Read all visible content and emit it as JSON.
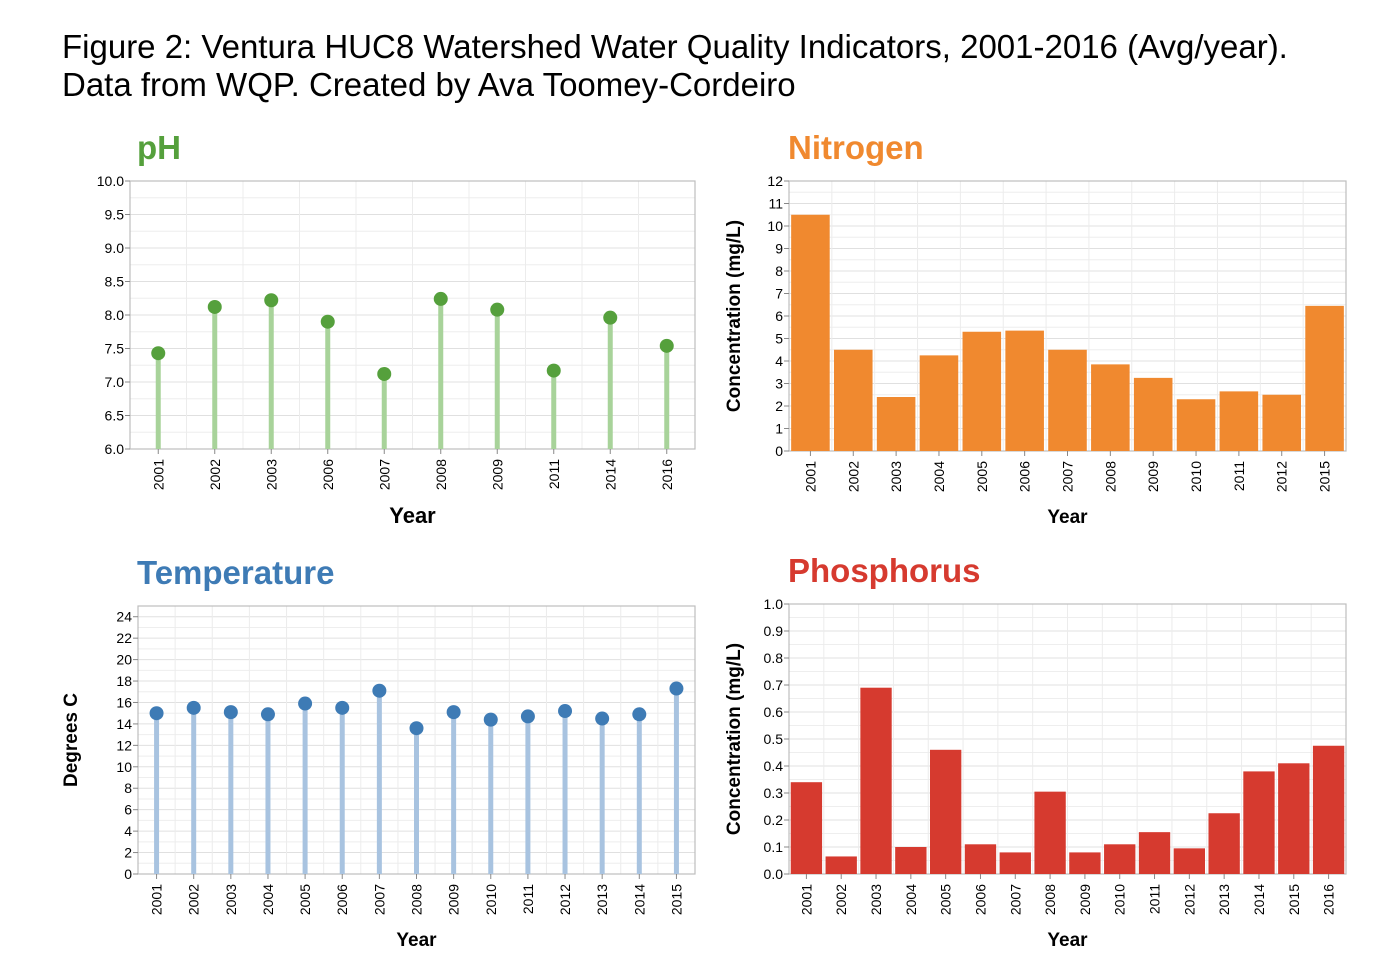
{
  "figure": {
    "title_line1": "Figure 2: Ventura HUC8 Watershed Water Quality Indicators, 2001-2016 (Avg/year).",
    "title_line2": "Data from WQP. Created by Ava Toomey-Cordeiro"
  },
  "chart_data": [
    {
      "id": "ph",
      "type": "lollipop",
      "title": "pH",
      "title_color": "#55a03c",
      "xlabel": "Year",
      "ylabel": "",
      "ylim": [
        6.0,
        10.0
      ],
      "yticks": [
        "6.0",
        "6.5",
        "7.0",
        "7.5",
        "8.0",
        "8.5",
        "9.0",
        "9.5",
        "10.0"
      ],
      "grid": true,
      "colors": {
        "point": "#55a03c",
        "stem": "#a8d39a"
      },
      "categories": [
        "2001",
        "2002",
        "2003",
        "2006",
        "2007",
        "2008",
        "2009",
        "2011",
        "2014",
        "2016"
      ],
      "values": [
        7.43,
        8.12,
        8.22,
        7.9,
        7.12,
        8.24,
        8.08,
        7.17,
        7.96,
        7.54
      ]
    },
    {
      "id": "nitrogen",
      "type": "bar",
      "title": "Nitrogen",
      "title_color": "#f0892f",
      "xlabel": "Year",
      "ylabel": "Concentration (mg/L)",
      "ylim": [
        0,
        12
      ],
      "yticks": [
        "0",
        "1",
        "2",
        "3",
        "4",
        "5",
        "6",
        "7",
        "8",
        "9",
        "10",
        "11",
        "12"
      ],
      "grid": true,
      "colors": {
        "bar": "#f0892f"
      },
      "categories": [
        "2001",
        "2002",
        "2003",
        "2004",
        "2005",
        "2006",
        "2007",
        "2008",
        "2009",
        "2010",
        "2011",
        "2012",
        "2015"
      ],
      "values": [
        10.5,
        4.5,
        2.4,
        4.25,
        5.3,
        5.35,
        4.5,
        3.85,
        3.25,
        2.3,
        2.65,
        2.5,
        6.45
      ]
    },
    {
      "id": "temperature",
      "type": "lollipop",
      "title": "Temperature",
      "title_color": "#3e7bb5",
      "xlabel": "Year",
      "ylabel": "Degrees C",
      "ylim": [
        0,
        25
      ],
      "yticks": [
        "0",
        "2",
        "4",
        "6",
        "8",
        "10",
        "12",
        "14",
        "16",
        "18",
        "20",
        "22",
        "24"
      ],
      "grid": true,
      "colors": {
        "point": "#3e7bb5",
        "stem": "#a8c3e0"
      },
      "categories": [
        "2001",
        "2002",
        "2003",
        "2004",
        "2005",
        "2006",
        "2007",
        "2008",
        "2009",
        "2010",
        "2011",
        "2012",
        "2013",
        "2014",
        "2015"
      ],
      "values": [
        15.0,
        15.5,
        15.1,
        14.9,
        15.9,
        15.5,
        17.1,
        13.6,
        15.1,
        14.4,
        14.7,
        15.2,
        14.5,
        14.9,
        17.3
      ]
    },
    {
      "id": "phosphorus",
      "type": "bar",
      "title": "Phosphorus",
      "title_color": "#d63a2f",
      "xlabel": "Year",
      "ylabel": "Concentration (mg/L)",
      "ylim": [
        0,
        1.0
      ],
      "yticks": [
        "0.0",
        "0.1",
        "0.2",
        "0.3",
        "0.4",
        "0.5",
        "0.6",
        "0.7",
        "0.8",
        "0.9",
        "1.0"
      ],
      "grid": true,
      "colors": {
        "bar": "#d63a2f"
      },
      "categories": [
        "2001",
        "2002",
        "2003",
        "2004",
        "2005",
        "2006",
        "2007",
        "2008",
        "2009",
        "2010",
        "2011",
        "2012",
        "2013",
        "2014",
        "2015",
        "2016"
      ],
      "values": [
        0.34,
        0.065,
        0.69,
        0.1,
        0.46,
        0.11,
        0.08,
        0.305,
        0.08,
        0.11,
        0.155,
        0.095,
        0.225,
        0.38,
        0.41,
        0.475
      ]
    }
  ]
}
